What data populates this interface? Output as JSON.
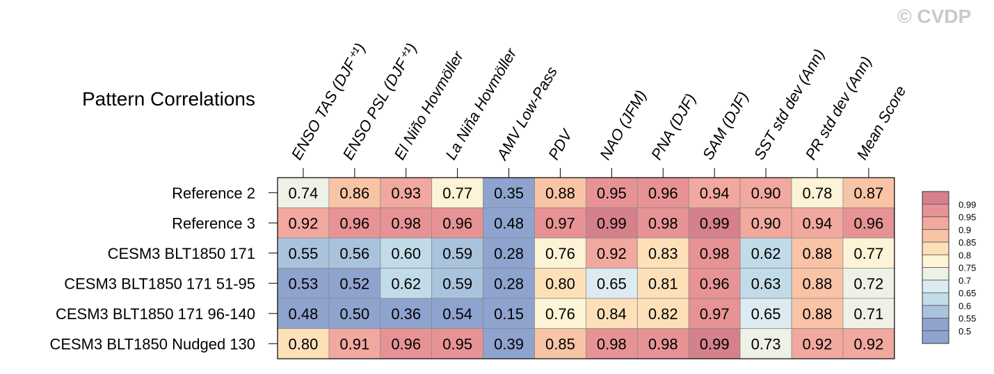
{
  "watermark": "© CVDP",
  "chart_data": {
    "type": "heatmap",
    "title": "Pattern Correlations",
    "columns": [
      "ENSO TAS (DJF⁺¹)",
      "ENSO PSL (DJF⁺¹)",
      "El Niño Hovmöller",
      "La Niña Hovmöller",
      "AMV Low-Pass",
      "PDV",
      "NAO (JFM)",
      "PNA (DJF)",
      "SAM (DJF)",
      "SST std dev (Ann)",
      "PR std dev (Ann)",
      "Mean Score"
    ],
    "rows": [
      "Reference 2",
      "Reference 3",
      "CESM3 BLT1850 171",
      "CESM3 BLT1850 171 51-95",
      "CESM3 BLT1850 171 96-140",
      "CESM3 BLT1850 Nudged 130"
    ],
    "values": [
      [
        "0.74",
        "0.86",
        "0.93",
        "0.77",
        "0.35",
        "0.88",
        "0.95",
        "0.96",
        "0.94",
        "0.90",
        "0.78",
        "0.87"
      ],
      [
        "0.92",
        "0.96",
        "0.98",
        "0.96",
        "0.48",
        "0.97",
        "0.99",
        "0.98",
        "0.99",
        "0.90",
        "0.94",
        "0.96"
      ],
      [
        "0.55",
        "0.56",
        "0.60",
        "0.59",
        "0.28",
        "0.76",
        "0.92",
        "0.83",
        "0.98",
        "0.62",
        "0.88",
        "0.77"
      ],
      [
        "0.53",
        "0.52",
        "0.62",
        "0.59",
        "0.28",
        "0.80",
        "0.65",
        "0.81",
        "0.96",
        "0.63",
        "0.88",
        "0.72"
      ],
      [
        "0.48",
        "0.50",
        "0.36",
        "0.54",
        "0.15",
        "0.76",
        "0.84",
        "0.82",
        "0.97",
        "0.65",
        "0.88",
        "0.71"
      ],
      [
        "0.80",
        "0.91",
        "0.96",
        "0.95",
        "0.39",
        "0.85",
        "0.98",
        "0.98",
        "0.99",
        "0.73",
        "0.92",
        "0.92"
      ]
    ],
    "colorbar": {
      "levels": [
        "0.99",
        "0.95",
        "0.9",
        "0.85",
        "0.8",
        "0.75",
        "0.7",
        "0.65",
        "0.6",
        "0.55",
        "0.5"
      ],
      "colors": [
        "#d4818b",
        "#e79395",
        "#f1a89f",
        "#f9c3a6",
        "#fde0b8",
        "#fdf3d6",
        "#eef2e6",
        "#dcebf1",
        "#c2dbe8",
        "#a9c3dd",
        "#8fa3cf",
        "#8fa3cf"
      ]
    }
  }
}
